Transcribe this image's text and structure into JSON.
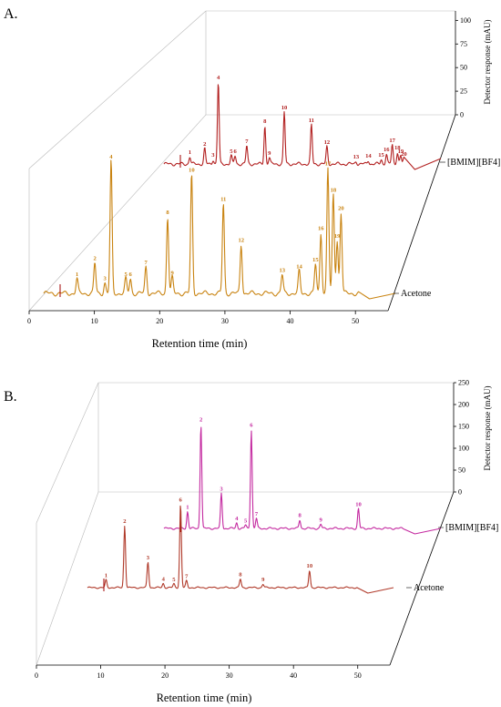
{
  "chart_data": [
    {
      "type": "line",
      "panel_label": "A.",
      "xlabel": "Retention time (min)",
      "x_ticks": [
        0,
        10,
        20,
        30,
        40,
        50
      ],
      "xlim": [
        0,
        55
      ],
      "ylabel": "Detector response (mAU)",
      "y_ticks": [
        0,
        25,
        50,
        75,
        100
      ],
      "ylim": [
        0,
        110
      ],
      "series": [
        {
          "name": "[BMIM][BF4]",
          "color": "#b22020",
          "peaks": [
            {
              "label": "1",
              "t": 4.0,
              "h": 8
            },
            {
              "label": "2",
              "t": 6.3,
              "h": 17
            },
            {
              "label": "3",
              "t": 7.6,
              "h": 5
            },
            {
              "label": "4",
              "t": 8.4,
              "h": 90
            },
            {
              "label": "5",
              "t": 10.4,
              "h": 9
            },
            {
              "label": "6",
              "t": 11.0,
              "h": 9
            },
            {
              "label": "7",
              "t": 12.8,
              "h": 20
            },
            {
              "label": "8",
              "t": 15.6,
              "h": 42
            },
            {
              "label": "9",
              "t": 16.3,
              "h": 7
            },
            {
              "label": "10",
              "t": 18.6,
              "h": 57
            },
            {
              "label": "11",
              "t": 22.8,
              "h": 43
            },
            {
              "label": "12",
              "t": 25.2,
              "h": 19
            },
            {
              "label": "13",
              "t": 29.7,
              "h": 3
            },
            {
              "label": "14",
              "t": 31.6,
              "h": 4
            },
            {
              "label": "15",
              "t": 33.6,
              "h": 5
            },
            {
              "label": "16",
              "t": 34.4,
              "h": 11
            },
            {
              "label": "17",
              "t": 35.3,
              "h": 21
            },
            {
              "label": "18",
              "t": 36.1,
              "h": 13
            },
            {
              "label": "19",
              "t": 36.6,
              "h": 9
            },
            {
              "label": "20",
              "t": 37.1,
              "h": 6
            }
          ]
        },
        {
          "name": "Acetone",
          "color": "#c98412",
          "peaks": [
            {
              "label": "1",
              "t": 4.3,
              "h": 11
            },
            {
              "label": "2",
              "t": 6.6,
              "h": 23
            },
            {
              "label": "3",
              "t": 7.9,
              "h": 8
            },
            {
              "label": "4",
              "t": 8.7,
              "h": 100
            },
            {
              "label": "5",
              "t": 10.6,
              "h": 11
            },
            {
              "label": "6",
              "t": 11.2,
              "h": 11
            },
            {
              "label": "7",
              "t": 13.2,
              "h": 20
            },
            {
              "label": "8",
              "t": 16.0,
              "h": 58
            },
            {
              "label": "9",
              "t": 16.6,
              "h": 12
            },
            {
              "label": "10",
              "t": 19.1,
              "h": 90
            },
            {
              "label": "11",
              "t": 23.2,
              "h": 68
            },
            {
              "label": "12",
              "t": 25.5,
              "h": 37
            },
            {
              "label": "13",
              "t": 30.8,
              "h": 14
            },
            {
              "label": "14",
              "t": 33.0,
              "h": 17
            },
            {
              "label": "15",
              "t": 35.1,
              "h": 22
            },
            {
              "label": "16",
              "t": 35.8,
              "h": 46
            },
            {
              "label": "17",
              "t": 36.7,
              "h": 95
            },
            {
              "label": "18",
              "t": 37.4,
              "h": 75
            },
            {
              "label": "19",
              "t": 37.9,
              "h": 40
            },
            {
              "label": "20",
              "t": 38.4,
              "h": 61
            }
          ]
        }
      ]
    },
    {
      "type": "line",
      "panel_label": "B.",
      "xlabel": "Retention time (min)",
      "x_ticks": [
        0,
        10,
        20,
        30,
        40,
        50
      ],
      "xlim": [
        0,
        55
      ],
      "ylabel": "Detector response (mAU)",
      "y_ticks": [
        0,
        50,
        100,
        150,
        200,
        250
      ],
      "ylim": [
        0,
        250
      ],
      "series": [
        {
          "name": "[BMIM][BF4]",
          "color": "#c42aa0",
          "peaks": [
            {
              "label": "1",
              "t": 3.7,
              "h": 30
            },
            {
              "label": "2",
              "t": 5.8,
              "h": 185
            },
            {
              "label": "3",
              "t": 9.0,
              "h": 62
            },
            {
              "label": "4",
              "t": 11.4,
              "h": 10
            },
            {
              "label": "5",
              "t": 12.8,
              "h": 6
            },
            {
              "label": "6",
              "t": 13.7,
              "h": 175
            },
            {
              "label": "7",
              "t": 14.5,
              "h": 18
            },
            {
              "label": "8",
              "t": 21.3,
              "h": 15
            },
            {
              "label": "9",
              "t": 24.6,
              "h": 7
            },
            {
              "label": "10",
              "t": 30.5,
              "h": 35
            }
          ]
        },
        {
          "name": "Acetone",
          "color": "#b03a2a",
          "peaks": [
            {
              "label": "1",
              "t": 2.8,
              "h": 18
            },
            {
              "label": "2",
              "t": 5.6,
              "h": 145
            },
            {
              "label": "3",
              "t": 9.1,
              "h": 60
            },
            {
              "label": "4",
              "t": 11.4,
              "h": 10
            },
            {
              "label": "5",
              "t": 13.0,
              "h": 9
            },
            {
              "label": "6",
              "t": 14.0,
              "h": 195
            },
            {
              "label": "7",
              "t": 14.9,
              "h": 16
            },
            {
              "label": "8",
              "t": 23.0,
              "h": 20
            },
            {
              "label": "9",
              "t": 26.4,
              "h": 8
            },
            {
              "label": "10",
              "t": 33.4,
              "h": 40
            }
          ]
        }
      ]
    }
  ]
}
